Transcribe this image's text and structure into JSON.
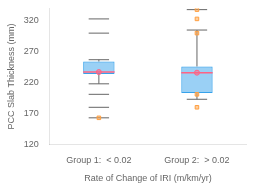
{
  "chart_data": {
    "type": "box",
    "xlabel": "Rate of Change of IRI (m/km/yr)",
    "ylabel": "PCC Slab Thickness (mm)",
    "categories": [
      "Group 1:  < 0.02",
      "Group 2:  > 0.02"
    ],
    "values": [
      {
        "median": 237,
        "q1": 234,
        "q3": 254,
        "whisker_low": 218,
        "whisker_high": 257,
        "outliers": [
          163,
          180,
          201,
          300,
          323
        ]
      },
      {
        "median": 236,
        "q1": 203,
        "q3": 246,
        "whisker_low": 193,
        "whisker_high": 305,
        "outliers": [
          338
        ]
      }
    ],
    "ylim": [
      120,
      340
    ],
    "yticks": [
      120,
      170,
      220,
      270,
      320
    ],
    "grid": false
  }
}
